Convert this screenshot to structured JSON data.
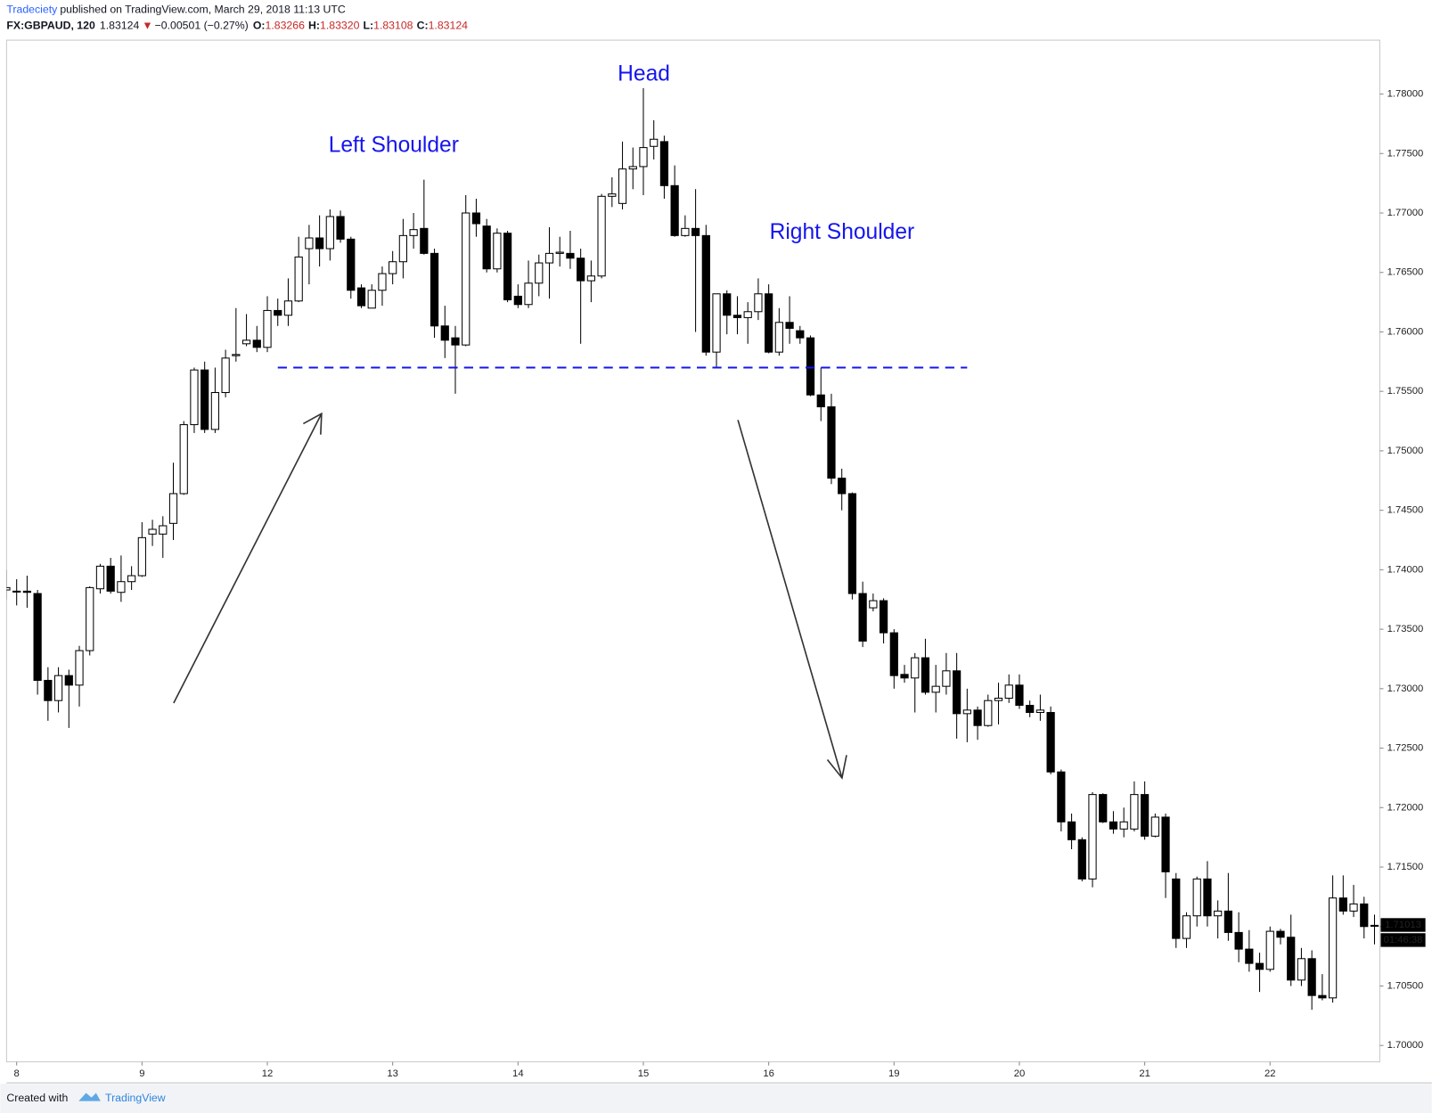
{
  "header": {
    "publisher": "Tradeciety",
    "published": "published on TradingView.com, March 29, 2018 11:13 UTC",
    "symbol": "FX:GBPAUD, 120",
    "last": "1.83124",
    "direction": "▼",
    "change": "−0.00501 (−0.27%)",
    "o_label": "O:",
    "o": "1.83266",
    "h_label": "H:",
    "h": "1.83320",
    "l_label": "L:",
    "l": "1.83108",
    "c_label": "C:",
    "c": "1.83124"
  },
  "footer": {
    "created_with": "Created with",
    "brand": "TradingView"
  },
  "chart_data": {
    "type": "candlestick",
    "annotations": [
      "Left Shoulder",
      "Head",
      "Right Shoulder"
    ],
    "categories": [
      null,
      "8",
      null,
      null,
      null,
      null,
      null,
      null,
      null,
      null,
      null,
      null,
      null,
      "9",
      null,
      null,
      null,
      null,
      null,
      null,
      null,
      null,
      null,
      null,
      null,
      "12",
      null,
      null,
      null,
      null,
      null,
      null,
      null,
      null,
      null,
      null,
      null,
      "13",
      null,
      null,
      null,
      null,
      null,
      null,
      null,
      null,
      null,
      null,
      null,
      "14",
      null,
      null,
      null,
      null,
      null,
      null,
      null,
      null,
      null,
      null,
      null,
      "15",
      null,
      null,
      null,
      null,
      null,
      null,
      null,
      null,
      null,
      null,
      null,
      "16",
      null,
      null,
      null,
      null,
      null,
      null,
      null,
      null,
      null,
      null,
      null,
      "19",
      null,
      null,
      null,
      null,
      null,
      null,
      null,
      null,
      null,
      null,
      null,
      "20",
      null,
      null,
      null,
      null,
      null,
      null,
      null,
      null,
      null,
      null,
      null,
      "21",
      null,
      null,
      null,
      null,
      null,
      null,
      null,
      null,
      null,
      null,
      null,
      "22",
      null,
      null,
      null,
      null,
      null,
      null,
      null,
      null,
      null,
      null
    ],
    "open": [
      1.7383,
      1.7382,
      1.7382,
      1.738,
      1.7307,
      1.729,
      1.7311,
      1.7303,
      1.7332,
      1.7384,
      1.7403,
      1.7381,
      1.739,
      1.7395,
      1.743,
      1.743,
      1.7439,
      1.7464,
      1.7522,
      1.7568,
      1.7518,
      1.7549,
      1.758,
      1.759,
      1.7593,
      1.7587,
      1.7618,
      1.7614,
      1.7626,
      1.767,
      1.7679,
      1.767,
      1.7697,
      1.7678,
      1.7637,
      1.762,
      1.7635,
      1.7649,
      1.7659,
      1.7681,
      1.7687,
      1.7666,
      1.7605,
      1.7595,
      1.7589,
      1.77,
      1.7689,
      1.7653,
      1.7683,
      1.763,
      1.7623,
      1.7641,
      1.7658,
      1.7666,
      1.7666,
      1.7662,
      1.7643,
      1.7647,
      1.7714,
      1.7708,
      1.7737,
      1.7739,
      1.7756,
      1.776,
      1.7723,
      1.7681,
      1.7687,
      1.7681,
      1.7583,
      1.7632,
      1.7614,
      1.7612,
      1.7617,
      1.7632,
      1.7583,
      1.7608,
      1.7601,
      1.7595,
      1.7547,
      1.7537,
      1.7477,
      1.7464,
      1.738,
      1.7368,
      1.7374,
      1.7347,
      1.7312,
      1.7309,
      1.7326,
      1.7297,
      1.7302,
      1.7315,
      1.7279,
      1.7282,
      1.7269,
      1.729,
      1.7292,
      1.7303,
      1.7286,
      1.728,
      1.728,
      1.723,
      1.7188,
      1.7173,
      1.714,
      1.7211,
      1.7188,
      1.7182,
      1.7182,
      1.7211,
      1.7176,
      1.7192,
      1.714,
      1.709,
      1.7109,
      1.714,
      1.7109,
      1.7113,
      1.7095,
      1.7081,
      1.7069,
      1.7064,
      1.7096,
      1.7091,
      1.7055,
      1.7073,
      1.7042,
      1.704,
      1.7124,
      1.7113,
      1.7119,
      1.7101
    ],
    "high": [
      1.74,
      1.7392,
      1.7395,
      1.7383,
      1.7318,
      1.7318,
      1.7316,
      1.7336,
      1.7386,
      1.7405,
      1.741,
      1.7412,
      1.7403,
      1.744,
      1.7442,
      1.7445,
      1.749,
      1.7525,
      1.757,
      1.7575,
      1.757,
      1.7585,
      1.762,
      1.7615,
      1.7605,
      1.763,
      1.7628,
      1.7645,
      1.768,
      1.769,
      1.7698,
      1.7703,
      1.7702,
      1.768,
      1.764,
      1.764,
      1.7655,
      1.7668,
      1.7695,
      1.77,
      1.7728,
      1.767,
      1.7622,
      1.7605,
      1.7715,
      1.7712,
      1.7695,
      1.7687,
      1.7685,
      1.764,
      1.766,
      1.7665,
      1.7688,
      1.768,
      1.7685,
      1.767,
      1.766,
      1.7716,
      1.773,
      1.776,
      1.7755,
      1.7805,
      1.7778,
      1.7765,
      1.774,
      1.7698,
      1.772,
      1.769,
      1.7632,
      1.7635,
      1.763,
      1.7625,
      1.7645,
      1.764,
      1.762,
      1.763,
      1.7605,
      1.7597,
      1.757,
      1.7548,
      1.7485,
      1.7465,
      1.739,
      1.738,
      1.7376,
      1.735,
      1.732,
      1.733,
      1.7342,
      1.732,
      1.733,
      1.733,
      1.73,
      1.7285,
      1.7295,
      1.7305,
      1.7312,
      1.7312,
      1.729,
      1.7295,
      1.7285,
      1.7232,
      1.7195,
      1.7175,
      1.7213,
      1.7212,
      1.7197,
      1.72,
      1.7222,
      1.7222,
      1.7195,
      1.7195,
      1.7145,
      1.7112,
      1.7142,
      1.7155,
      1.7122,
      1.7145,
      1.7112,
      1.7097,
      1.7078,
      1.71,
      1.7098,
      1.711,
      1.7082,
      1.708,
      1.706,
      1.7143,
      1.7143,
      1.7135,
      1.7125,
      1.711
    ],
    "low": [
      1.7375,
      1.737,
      1.7368,
      1.7295,
      1.7273,
      1.728,
      1.7267,
      1.7285,
      1.7328,
      1.738,
      1.738,
      1.7373,
      1.7383,
      1.7394,
      1.742,
      1.741,
      1.7425,
      1.7463,
      1.7515,
      1.7515,
      1.7515,
      1.7545,
      1.7575,
      1.7588,
      1.7583,
      1.7583,
      1.7605,
      1.7605,
      1.7625,
      1.764,
      1.7655,
      1.766,
      1.7675,
      1.7628,
      1.762,
      1.762,
      1.7622,
      1.764,
      1.7645,
      1.767,
      1.7665,
      1.7595,
      1.7578,
      1.7548,
      1.7588,
      1.768,
      1.765,
      1.765,
      1.7625,
      1.762,
      1.762,
      1.763,
      1.7628,
      1.7655,
      1.7653,
      1.759,
      1.7625,
      1.7645,
      1.7705,
      1.7703,
      1.772,
      1.7715,
      1.7745,
      1.7712,
      1.768,
      1.768,
      1.76,
      1.758,
      1.757,
      1.7598,
      1.7598,
      1.759,
      1.761,
      1.7582,
      1.758,
      1.759,
      1.759,
      1.7546,
      1.7525,
      1.7472,
      1.745,
      1.7375,
      1.7335,
      1.7365,
      1.7338,
      1.73,
      1.7305,
      1.728,
      1.7295,
      1.728,
      1.7295,
      1.7258,
      1.7255,
      1.7257,
      1.7268,
      1.727,
      1.7288,
      1.7283,
      1.7276,
      1.7273,
      1.7228,
      1.718,
      1.7165,
      1.7138,
      1.7133,
      1.7187,
      1.7178,
      1.7175,
      1.718,
      1.7173,
      1.7175,
      1.7124,
      1.7082,
      1.7082,
      1.71,
      1.71,
      1.709,
      1.7088,
      1.707,
      1.7062,
      1.7045,
      1.7062,
      1.7085,
      1.705,
      1.705,
      1.703,
      1.7038,
      1.7036,
      1.711,
      1.7108,
      1.709,
      1.7085
    ],
    "close": [
      1.7385,
      1.7382,
      1.7381,
      1.7307,
      1.729,
      1.7311,
      1.7303,
      1.7332,
      1.7385,
      1.7403,
      1.7382,
      1.739,
      1.7395,
      1.7427,
      1.7434,
      1.7437,
      1.7464,
      1.7522,
      1.7568,
      1.7518,
      1.7549,
      1.7578,
      1.7581,
      1.7593,
      1.7587,
      1.7618,
      1.7614,
      1.7626,
      1.7663,
      1.7679,
      1.767,
      1.7697,
      1.7678,
      1.7635,
      1.7622,
      1.7635,
      1.7649,
      1.7659,
      1.7681,
      1.7686,
      1.7666,
      1.7605,
      1.7593,
      1.7589,
      1.77,
      1.7691,
      1.7653,
      1.7683,
      1.7627,
      1.7623,
      1.7641,
      1.7658,
      1.7666,
      1.7667,
      1.7662,
      1.7643,
      1.7647,
      1.7714,
      1.7716,
      1.7737,
      1.7739,
      1.7755,
      1.7762,
      1.7723,
      1.7681,
      1.7687,
      1.7681,
      1.7583,
      1.7632,
      1.7614,
      1.7612,
      1.7617,
      1.7632,
      1.7583,
      1.7608,
      1.7603,
      1.7595,
      1.7547,
      1.7537,
      1.7477,
      1.7464,
      1.738,
      1.734,
      1.7374,
      1.7347,
      1.7311,
      1.7309,
      1.7326,
      1.7297,
      1.7302,
      1.7315,
      1.7279,
      1.7282,
      1.7269,
      1.729,
      1.7292,
      1.7303,
      1.7286,
      1.728,
      1.7282,
      1.723,
      1.7188,
      1.7173,
      1.714,
      1.7211,
      1.7188,
      1.7182,
      1.7188,
      1.7211,
      1.7176,
      1.7192,
      1.7146,
      1.709,
      1.7109,
      1.714,
      1.7109,
      1.7113,
      1.7095,
      1.7081,
      1.7069,
      1.7064,
      1.7096,
      1.7091,
      1.7055,
      1.7073,
      1.7042,
      1.704,
      1.7124,
      1.7113,
      1.7119,
      1.71,
      1.7101
    ],
    "up_color": "#ffffff",
    "down_color": "#000000",
    "wick_color": "#000000",
    "neckline": 1.757,
    "neckline_color": "#1515ee",
    "last_price": 1.71013,
    "countdown": "01:46:38",
    "ylim": [
      1.69862,
      1.78453
    ],
    "yticks": [
      {
        "value": 1.7,
        "label": "1.70000"
      },
      {
        "value": 1.705,
        "label": "1.70500"
      },
      {
        "value": 1.71,
        "label": "1.71000"
      },
      {
        "value": 1.715,
        "label": "1.71500"
      },
      {
        "value": 1.72,
        "label": "1.72000"
      },
      {
        "value": 1.725,
        "label": "1.72500"
      },
      {
        "value": 1.73,
        "label": "1.73000"
      },
      {
        "value": 1.735,
        "label": "1.73500"
      },
      {
        "value": 1.74,
        "label": "1.74000"
      },
      {
        "value": 1.745,
        "label": "1.74500"
      },
      {
        "value": 1.75,
        "label": "1.75000"
      },
      {
        "value": 1.755,
        "label": "1.75500"
      },
      {
        "value": 1.76,
        "label": "1.76000"
      },
      {
        "value": 1.765,
        "label": "1.76500"
      },
      {
        "value": 1.77,
        "label": "1.77000"
      },
      {
        "value": 1.775,
        "label": "1.77500"
      },
      {
        "value": 1.78,
        "label": "1.78000"
      }
    ],
    "grid": false
  }
}
